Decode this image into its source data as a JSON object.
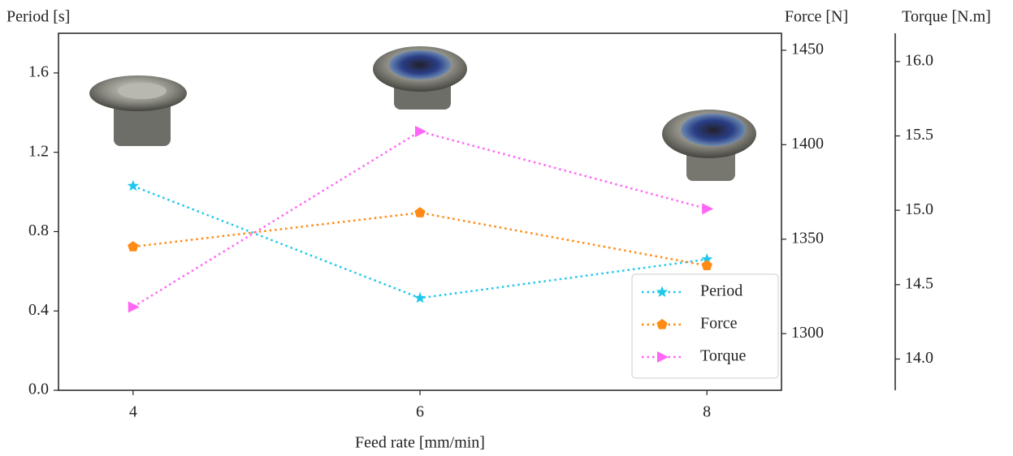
{
  "chart_data": {
    "type": "line",
    "xlabel": "Feed rate [mm/min]",
    "ylabel": "Period [s]",
    "y2label": "Force [N]",
    "y3label": "Torque [N.m]",
    "x": [
      4,
      6,
      8
    ],
    "xlim": [
      3.48,
      8.52
    ],
    "xticks": [
      4,
      6,
      8
    ],
    "ylim": [
      0,
      1.8
    ],
    "yticks": [
      {
        "value": 0,
        "label": "0.0"
      },
      0.4,
      0.8,
      1.2,
      1.6
    ],
    "y2lim": [
      1270,
      1459
    ],
    "y2ticks": [
      1300,
      1350,
      1400,
      1450
    ],
    "y3lim": [
      13.79,
      16.19
    ],
    "y3ticks": [
      {
        "value": 14,
        "label": "14.0"
      },
      14.5,
      {
        "value": 15,
        "label": "15.0"
      },
      15.5,
      {
        "value": 16,
        "label": "16.0"
      }
    ],
    "legend": "lower right",
    "series": [
      {
        "name": "Period",
        "color": "#1ec8ec",
        "marker": "star",
        "axis": "y",
        "values": [
          1.03,
          0.465,
          0.66
        ]
      },
      {
        "name": "Force",
        "color": "#ff8a14",
        "marker": "pentagon",
        "axis": "y2",
        "values": [
          1346,
          1364,
          1336
        ]
      },
      {
        "name": "Torque",
        "color": "#ff66f5",
        "marker": "triangle-right",
        "axis": "y3",
        "values": [
          14.35,
          15.53,
          15.01
        ]
      }
    ]
  }
}
